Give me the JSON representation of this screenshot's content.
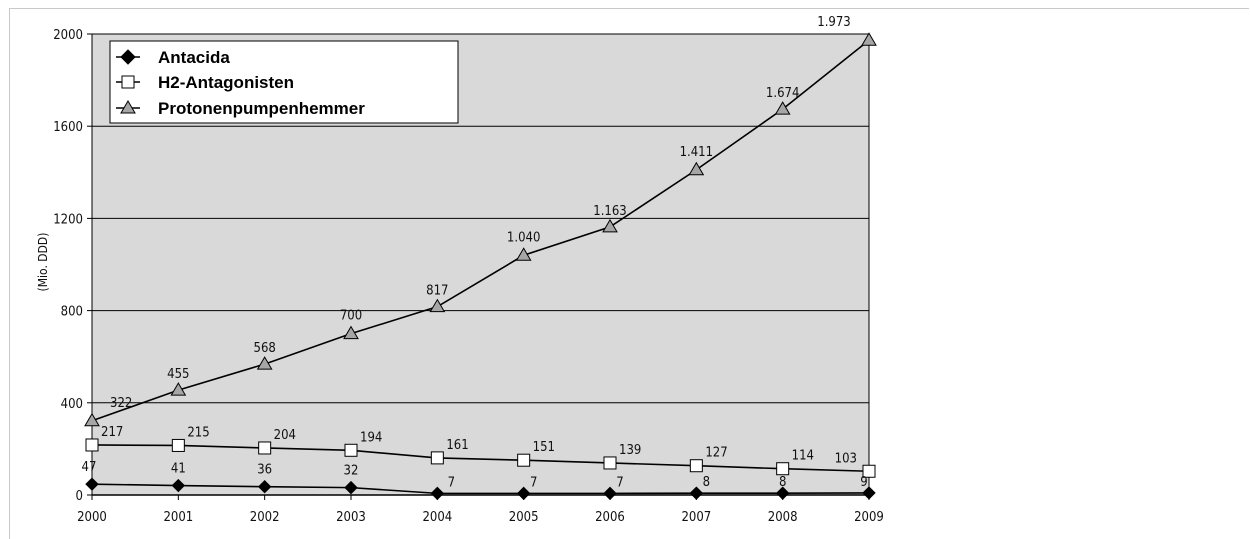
{
  "chart_data": {
    "type": "line",
    "title": "",
    "xlabel": "",
    "ylabel": "(Mio. DDD)",
    "ylim": [
      0,
      2000
    ],
    "yticks": [
      0,
      400,
      800,
      1200,
      1600,
      2000
    ],
    "categories": [
      "2000",
      "2001",
      "2002",
      "2003",
      "2004",
      "2005",
      "2006",
      "2007",
      "2008",
      "2009"
    ],
    "grid": true,
    "legend_position": "top-left",
    "series": [
      {
        "name": "Antacida",
        "marker": "diamond-filled",
        "color": "#000000",
        "values": [
          47,
          41,
          36,
          32,
          7,
          7,
          7,
          8,
          8,
          9
        ],
        "labels": [
          "47",
          "41",
          "36",
          "32",
          "7",
          "7",
          "7",
          "8",
          "8",
          "9"
        ]
      },
      {
        "name": "H2-Antagonisten",
        "marker": "square-open",
        "color": "#000000",
        "values": [
          217,
          215,
          204,
          194,
          161,
          151,
          139,
          127,
          114,
          103
        ],
        "labels": [
          "217",
          "215",
          "204",
          "194",
          "161",
          "151",
          "139",
          "127",
          "114",
          "103"
        ]
      },
      {
        "name": "Protonenpumpenhemmer",
        "marker": "triangle-gray",
        "color": "#000000",
        "values": [
          322,
          455,
          568,
          700,
          817,
          1040,
          1163,
          1411,
          1674,
          1973
        ],
        "labels": [
          "322",
          "455",
          "568",
          "700",
          "817",
          "1.040",
          "1.163",
          "1.411",
          "1.674",
          "1.973"
        ]
      }
    ],
    "colors": {
      "plot_background": "#d9d9d9",
      "gridline": "#000000",
      "triangle_fill": "#a6a6a6",
      "legend_background": "#ffffff"
    }
  }
}
